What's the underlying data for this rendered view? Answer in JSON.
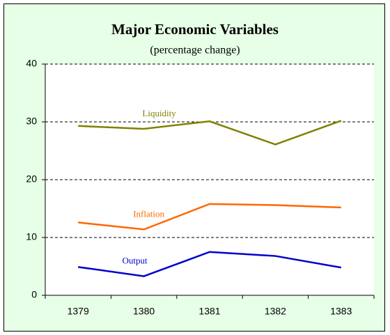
{
  "chart_data": {
    "type": "line",
    "title": "Major Economic Variables",
    "subtitle": "(percentage change)",
    "categories": [
      "1379",
      "1380",
      "1381",
      "1382",
      "1383"
    ],
    "series": [
      {
        "name": "Liquidity",
        "color": "#808000",
        "values": [
          29.3,
          28.8,
          30.1,
          26.1,
          30.2
        ]
      },
      {
        "name": "Inflation",
        "color": "#ff6600",
        "values": [
          12.6,
          11.4,
          15.8,
          15.6,
          15.2
        ]
      },
      {
        "name": "Output",
        "color": "#0000cc",
        "values": [
          4.9,
          3.3,
          7.5,
          6.8,
          4.8
        ]
      }
    ],
    "ylim": [
      0,
      40
    ],
    "yticks": [
      0,
      10,
      20,
      30,
      40
    ],
    "grid": true
  }
}
